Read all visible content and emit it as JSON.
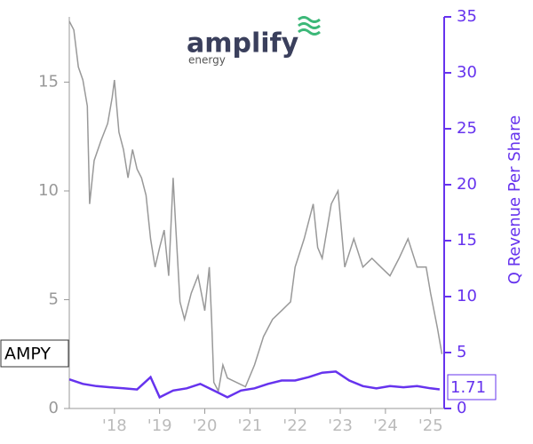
{
  "logo": {
    "name": "amplify",
    "sub": "energy"
  },
  "chart_data": {
    "type": "line",
    "xlim": [
      2017,
      2025.3
    ],
    "xticks": [
      {
        "value": 2018,
        "label": "'18"
      },
      {
        "value": 2019,
        "label": "'19"
      },
      {
        "value": 2020,
        "label": "'20"
      },
      {
        "value": 2021,
        "label": "'21"
      },
      {
        "value": 2022,
        "label": "'22"
      },
      {
        "value": 2023,
        "label": "'23"
      },
      {
        "value": 2024,
        "label": "'24"
      },
      {
        "value": 2025,
        "label": "'25"
      }
    ],
    "ylim": [
      0,
      18
    ],
    "yticks": [
      0,
      5,
      10,
      15
    ],
    "y2lim": [
      0,
      35
    ],
    "y2ticks": [
      0,
      5,
      10,
      15,
      20,
      25,
      30,
      35
    ],
    "y2label": "Q Revenue Per Share",
    "series": [
      {
        "name": "AMPY",
        "color": "#999999",
        "x": [
          2017.0,
          2017.1,
          2017.2,
          2017.3,
          2017.4,
          2017.45,
          2017.55,
          2017.7,
          2017.85,
          2017.95,
          2018.0,
          2018.1,
          2018.2,
          2018.3,
          2018.4,
          2018.5,
          2018.6,
          2018.7,
          2018.8,
          2018.9,
          2019.0,
          2019.1,
          2019.2,
          2019.3,
          2019.35,
          2019.45,
          2019.55,
          2019.7,
          2019.85,
          2020.0,
          2020.1,
          2020.15,
          2020.2,
          2020.3,
          2020.4,
          2020.5,
          2020.7,
          2020.9,
          2021.1,
          2021.3,
          2021.5,
          2021.7,
          2021.9,
          2022.0,
          2022.2,
          2022.4,
          2022.5,
          2022.6,
          2022.8,
          2022.95,
          2023.1,
          2023.3,
          2023.5,
          2023.7,
          2023.9,
          2024.1,
          2024.3,
          2024.5,
          2024.7,
          2024.9,
          2025.0,
          2025.15,
          2025.25
        ],
        "values": [
          17.8,
          17.4,
          15.7,
          15.1,
          13.9,
          9.4,
          11.4,
          12.3,
          13.1,
          14.3,
          15.1,
          12.7,
          11.9,
          10.6,
          11.9,
          11.0,
          10.6,
          9.8,
          7.8,
          6.5,
          7.4,
          8.2,
          6.1,
          10.6,
          8.6,
          4.9,
          4.1,
          5.3,
          6.1,
          4.5,
          6.5,
          4.1,
          1.2,
          0.8,
          2.0,
          1.4,
          1.2,
          1.0,
          2.0,
          3.3,
          4.1,
          4.5,
          4.9,
          6.5,
          7.8,
          9.4,
          7.4,
          6.9,
          9.4,
          10.0,
          6.5,
          7.8,
          6.5,
          6.9,
          6.5,
          6.1,
          6.9,
          7.8,
          6.5,
          6.5,
          5.3,
          3.7,
          2.5
        ]
      },
      {
        "axis": "y2",
        "color": "#6633ee",
        "x": [
          2017.0,
          2017.3,
          2017.6,
          2017.9,
          2018.2,
          2018.5,
          2018.8,
          2019.0,
          2019.3,
          2019.6,
          2019.9,
          2020.2,
          2020.5,
          2020.8,
          2021.1,
          2021.4,
          2021.7,
          2022.0,
          2022.3,
          2022.6,
          2022.9,
          2023.2,
          2023.5,
          2023.8,
          2024.1,
          2024.4,
          2024.7,
          2025.0,
          2025.2
        ],
        "values": [
          2.6,
          2.2,
          2.0,
          1.9,
          1.8,
          1.7,
          2.8,
          1.0,
          1.6,
          1.8,
          2.2,
          1.6,
          1.0,
          1.6,
          1.8,
          2.2,
          2.5,
          2.5,
          2.8,
          3.2,
          3.3,
          2.5,
          2.0,
          1.8,
          2.0,
          1.9,
          2.0,
          1.8,
          1.71
        ]
      }
    ]
  }
}
